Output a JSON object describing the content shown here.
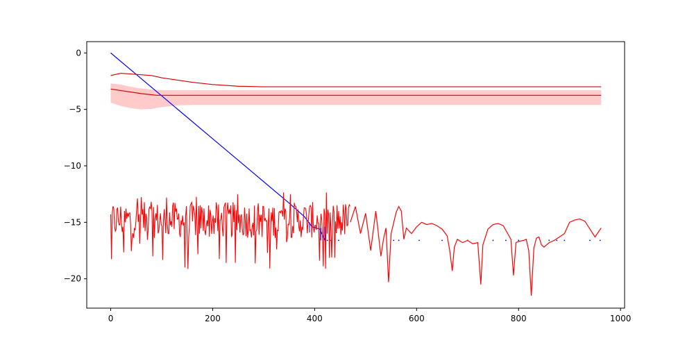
{
  "chart_data": {
    "type": "line",
    "title": "",
    "xlabel": "",
    "ylabel": "",
    "xlim": [
      -47,
      1008
    ],
    "ylim": [
      -22.6,
      1.0
    ],
    "xticks": [
      0,
      200,
      400,
      600,
      800,
      1000
    ],
    "yticks": [
      0,
      -5,
      -10,
      -15,
      -20
    ],
    "xtick_labels": [
      "0",
      "200",
      "400",
      "600",
      "800",
      "1000"
    ],
    "ytick_labels": [
      "0",
      "−5",
      "−10",
      "−15",
      "−20"
    ],
    "grid": false,
    "legend": "none",
    "colors": {
      "blue": "#0000ff",
      "red": "#ff0000",
      "dark_red": "#d40000",
      "band_fill": "#ffb3b3"
    },
    "series": [
      {
        "color": "#0000ff",
        "style": "line",
        "x": [
          0,
          50,
          100,
          150,
          200,
          250,
          300,
          350,
          380,
          395,
          410,
          420
        ],
        "y": [
          0,
          -1.9,
          -3.8,
          -5.7,
          -7.6,
          -9.5,
          -11.4,
          -13.3,
          -14.5,
          -15.4,
          -15.6,
          -16.6
        ]
      },
      {
        "color": "#0000ff",
        "style": "dots",
        "x": [
          425,
          432,
          440,
          447,
          555,
          565,
          605,
          650,
          700,
          750,
          775,
          800,
          860,
          875,
          890,
          940,
          960
        ],
        "y": [
          -16.6,
          -16.6,
          -16.6,
          -16.6,
          -16.6,
          -16.6,
          -16.6,
          -16.6,
          -16.6,
          -16.6,
          -16.6,
          -16.6,
          -16.6,
          -16.6,
          -16.6,
          -16.6,
          -16.6
        ]
      },
      {
        "color": "#d40000",
        "style": "line",
        "x": [
          0,
          20,
          50,
          80,
          100,
          130,
          160,
          200,
          250,
          300,
          400,
          600,
          800,
          962
        ],
        "y": [
          -2.0,
          -1.8,
          -1.9,
          -2.0,
          -2.2,
          -2.4,
          -2.6,
          -2.8,
          -2.95,
          -3.0,
          -3.0,
          -3.0,
          -3.0,
          -3.0
        ]
      },
      {
        "color": "#d40000",
        "style": "line",
        "x": [
          0,
          30,
          60,
          90,
          120,
          150,
          200,
          300,
          400,
          600,
          800,
          962
        ],
        "y": [
          -3.2,
          -3.4,
          -3.6,
          -3.75,
          -3.75,
          -3.75,
          -3.75,
          -3.75,
          -3.75,
          -3.75,
          -3.75,
          -3.75
        ]
      },
      {
        "color": "#ffb3b3",
        "style": "band",
        "x": [
          0,
          20,
          40,
          60,
          80,
          100,
          130,
          160,
          200,
          300,
          400,
          600,
          800,
          962
        ],
        "upper": [
          -2.7,
          -2.8,
          -3.0,
          -3.15,
          -3.25,
          -3.3,
          -3.3,
          -3.3,
          -3.3,
          -3.3,
          -3.3,
          -3.3,
          -3.3,
          -3.3
        ],
        "lower": [
          -4.4,
          -4.7,
          -4.9,
          -5.0,
          -4.95,
          -4.8,
          -4.65,
          -4.6,
          -4.6,
          -4.6,
          -4.6,
          -4.6,
          -4.6,
          -4.6
        ]
      },
      {
        "color": "#ff0000",
        "style": "noise",
        "x_range": [
          0,
          470
        ],
        "y_mean": -14.8,
        "y_min": -19.2,
        "y_max": -12.3
      },
      {
        "color": "#ff0000",
        "style": "line",
        "x": [
          470,
          480,
          490,
          500,
          510,
          520,
          530,
          535,
          540,
          545,
          550,
          560,
          565,
          570,
          575,
          580,
          590,
          600,
          610,
          620,
          630,
          640,
          650,
          660,
          665,
          670,
          674,
          680,
          690,
          700,
          710,
          720,
          726,
          730,
          740,
          750,
          760,
          770,
          780,
          785,
          790,
          795,
          800,
          810,
          815,
          820,
          825,
          830,
          835,
          840,
          845,
          850,
          860,
          870,
          880,
          890,
          900,
          910,
          920,
          930,
          940,
          950,
          962
        ],
        "y": [
          -15.0,
          -13.6,
          -16.0,
          -14.2,
          -17.5,
          -14.0,
          -18.0,
          -16.5,
          -15.5,
          -20.3,
          -16.0,
          -14.1,
          -13.6,
          -14.0,
          -16.5,
          -15.5,
          -16.0,
          -15.4,
          -15.0,
          -15.2,
          -15.1,
          -15.3,
          -15.6,
          -16.2,
          -17.5,
          -19.3,
          -17.2,
          -16.5,
          -16.8,
          -16.6,
          -16.9,
          -16.8,
          -20.5,
          -17.0,
          -15.6,
          -15.2,
          -15.1,
          -15.3,
          -16.1,
          -16.5,
          -19.7,
          -16.8,
          -16.7,
          -16.6,
          -16.5,
          -17.5,
          -21.5,
          -17.3,
          -16.4,
          -16.3,
          -17.0,
          -17.2,
          -16.8,
          -16.6,
          -16.3,
          -16.0,
          -15.0,
          -14.8,
          -14.7,
          -14.9,
          -15.6,
          -16.3,
          -15.5
        ]
      }
    ]
  }
}
